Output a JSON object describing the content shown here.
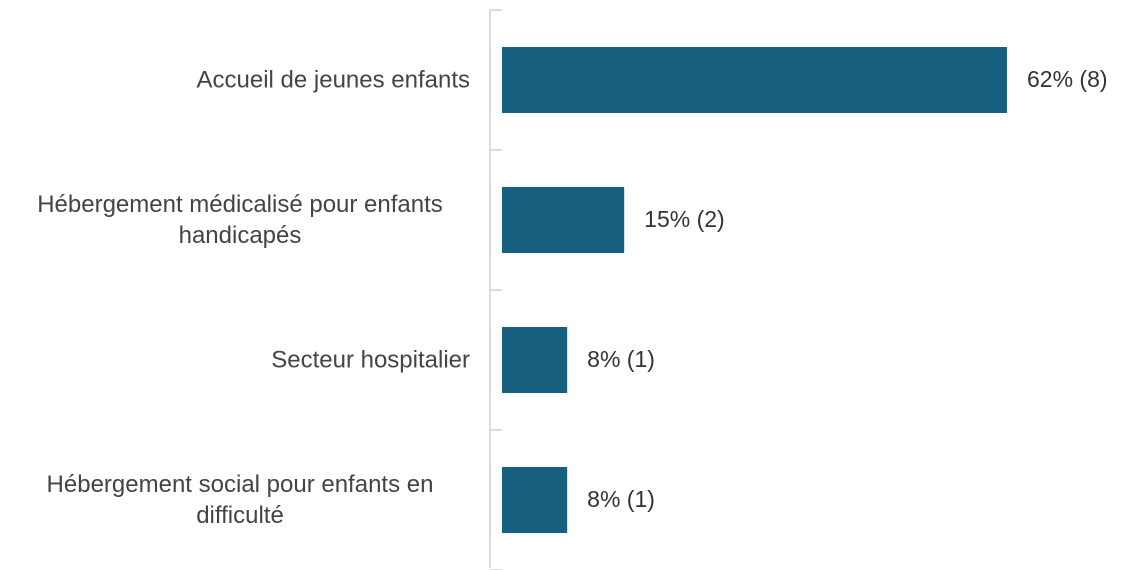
{
  "chart_data": {
    "type": "bar",
    "orientation": "horizontal",
    "categories": [
      "Accueil de jeunes enfants",
      "Hébergement médicalisé pour enfants handicapés",
      "Secteur hospitalier",
      "Hébergement social pour enfants en difficulté"
    ],
    "values": [
      62,
      15,
      8,
      8
    ],
    "value_labels": [
      "62% (8)",
      "15% (2)",
      "8% (1)",
      "8% (1)"
    ],
    "color": "#17607f"
  }
}
